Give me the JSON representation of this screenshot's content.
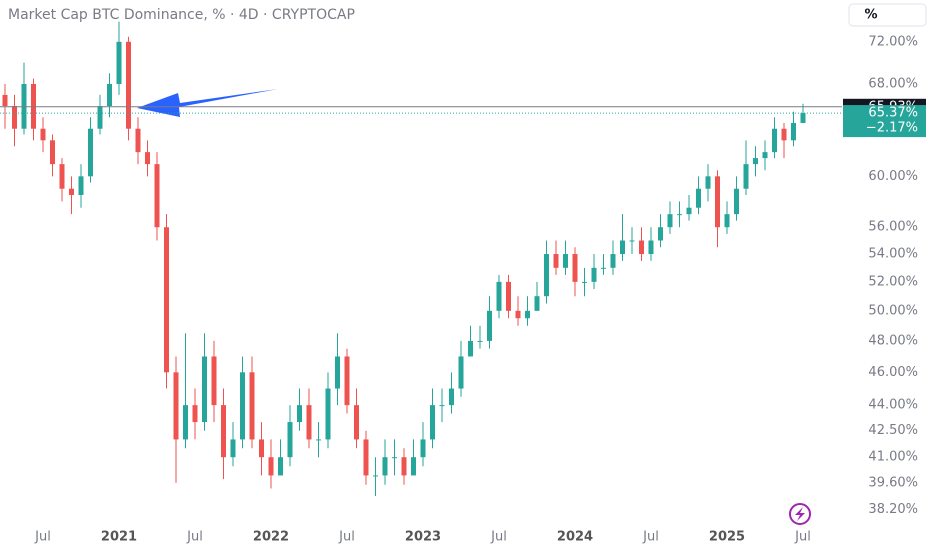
{
  "chart_data": {
    "type": "candlestick",
    "title": "Market Cap BTC Dominance, % · 4D · CRYPTOCAP",
    "unit_button": "%",
    "log_scale": true,
    "up_color": "#26a69a",
    "down_color": "#ef5350",
    "categories": [
      null,
      null,
      null,
      null,
      "Jul",
      null,
      null,
      null,
      null,
      null,
      null,
      null,
      "2021",
      null,
      null,
      null,
      null,
      null,
      null,
      null,
      "Jul",
      null,
      null,
      null,
      null,
      null,
      null,
      null,
      "2022",
      null,
      null,
      null,
      null,
      null,
      null,
      null,
      "Jul",
      null,
      null,
      null,
      null,
      null,
      null,
      null,
      "2023",
      null,
      null,
      null,
      null,
      null,
      null,
      null,
      "Jul",
      null,
      null,
      null,
      null,
      null,
      null,
      null,
      "2024",
      null,
      null,
      null,
      null,
      null,
      null,
      null,
      "Jul",
      null,
      null,
      null,
      null,
      null,
      null,
      null,
      "2025",
      null,
      null,
      null,
      null,
      null,
      null,
      null,
      "Jul"
    ],
    "open": [
      67,
      66,
      64,
      68,
      64,
      63,
      61,
      59,
      58.5,
      60,
      64,
      66,
      68,
      72,
      64,
      62,
      61,
      56,
      46,
      42,
      44,
      43,
      47,
      44,
      41,
      42,
      46,
      42,
      41,
      40,
      41,
      43,
      44,
      42,
      42,
      45,
      47,
      44,
      42,
      40,
      40,
      41,
      41,
      40,
      41,
      42,
      44,
      44,
      45,
      47,
      48,
      48,
      50,
      52,
      50,
      49.5,
      50,
      51,
      54,
      53,
      54,
      52,
      52,
      53,
      53,
      54,
      55,
      55,
      54,
      55,
      56,
      57,
      57,
      57.5,
      59,
      60,
      56,
      57,
      59,
      61,
      61.5,
      62,
      64,
      63,
      64.5
    ],
    "high": [
      68,
      67,
      70,
      68.5,
      65,
      63.5,
      61.5,
      60,
      61,
      65,
      67,
      69,
      74,
      72.5,
      65,
      63,
      62,
      57,
      47,
      48.5,
      45,
      48.5,
      48,
      45,
      43,
      47,
      47,
      43,
      42,
      42,
      44,
      45,
      45,
      43,
      46,
      48.5,
      47.5,
      45,
      42.5,
      41,
      42,
      42,
      41.5,
      42,
      43,
      45,
      45,
      46,
      48,
      49,
      49,
      51,
      52.5,
      52.5,
      51,
      51,
      52,
      55,
      55,
      55,
      54.5,
      53,
      54,
      54,
      55,
      57,
      56,
      56,
      56,
      57,
      58,
      58,
      58.5,
      60,
      61,
      60.5,
      58,
      60,
      63,
      62.5,
      63,
      65,
      64.5,
      65.5,
      66.2
    ],
    "low": [
      64,
      62.5,
      63.5,
      63,
      62,
      60,
      58,
      57,
      57.5,
      59.5,
      63.5,
      65,
      67,
      63,
      61,
      60,
      55,
      45,
      39.6,
      41.5,
      42,
      42.5,
      43,
      39.8,
      40.5,
      41.5,
      41.5,
      40,
      39.3,
      40,
      40.5,
      42.5,
      41.5,
      41,
      41.5,
      44,
      43.5,
      41.5,
      39.5,
      38.9,
      39.5,
      40,
      39.5,
      40,
      40.5,
      41.5,
      43,
      43.5,
      44.5,
      47,
      47.5,
      47.5,
      49.5,
      49.5,
      49,
      49,
      50,
      50.5,
      52.5,
      52.5,
      51,
      51,
      51.5,
      52.5,
      52.5,
      53.5,
      54,
      53.5,
      53.5,
      54.5,
      55.5,
      56,
      56.5,
      57,
      58,
      54.5,
      55.5,
      56.5,
      58.5,
      60,
      60.5,
      61.5,
      61.5,
      62.5,
      64.5
    ],
    "close": [
      66,
      64,
      68,
      64,
      63,
      61,
      59,
      58.5,
      60,
      64,
      66,
      68,
      72,
      64,
      62,
      61,
      56,
      46,
      42,
      44,
      43,
      47,
      44,
      41,
      42,
      46,
      42,
      41,
      40,
      41,
      43,
      44,
      42,
      42,
      45,
      47,
      44,
      42,
      40,
      40,
      41,
      41,
      40,
      41,
      42,
      44,
      44,
      45,
      47,
      48,
      48,
      50,
      52,
      50,
      49.5,
      50,
      51,
      54,
      53,
      54,
      52,
      52,
      53,
      53,
      54,
      55,
      55,
      54,
      55,
      56,
      57,
      57,
      57.5,
      59,
      60,
      56,
      57,
      59,
      61,
      61.5,
      62,
      64,
      63,
      64.5,
      65.37
    ],
    "ylim": [
      37.4,
      76.2
    ],
    "yticks": [
      {
        "value": 38.2,
        "label": "38.20%"
      },
      {
        "value": 39.6,
        "label": "39.60%"
      },
      {
        "value": 41,
        "label": "41.00%"
      },
      {
        "value": 42.5,
        "label": "42.50%"
      },
      {
        "value": 44,
        "label": "44.00%"
      },
      {
        "value": 46,
        "label": "46.00%"
      },
      {
        "value": 48,
        "label": "48.00%"
      },
      {
        "value": 50,
        "label": "50.00%"
      },
      {
        "value": 52,
        "label": "52.00%"
      },
      {
        "value": 54,
        "label": "54.00%"
      },
      {
        "value": 56,
        "label": "56.00%"
      },
      {
        "value": 60,
        "label": "60.00%"
      },
      {
        "value": 68,
        "label": "68.00%"
      },
      {
        "value": 72,
        "label": "72.00%"
      }
    ],
    "horizontal_line": {
      "value": 65.93,
      "label": "65.93%"
    },
    "last_price": {
      "value": 65.37,
      "label": "65.37%"
    },
    "change": {
      "value": -2.17,
      "label": "−2.17%"
    }
  }
}
